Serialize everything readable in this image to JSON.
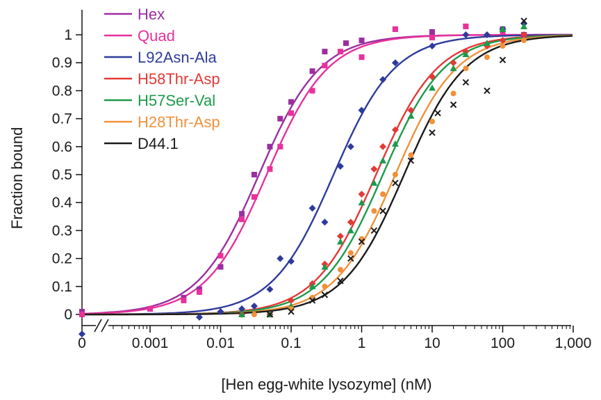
{
  "chart_data": {
    "type": "scatter",
    "title": "",
    "xlabel": "[Hen egg-white lysozyme] (nM)",
    "ylabel": "Fraction bound",
    "x_scale": "log",
    "x_axis_break": true,
    "xlim": [
      0.0001,
      1000
    ],
    "ylim": [
      -0.1,
      1.1
    ],
    "x_tick_labels": [
      "0",
      "0.001",
      "0.01",
      "0.1",
      "1",
      "10",
      "100",
      "1,000"
    ],
    "y_tick_labels": [
      "0",
      "0.1",
      "0.2",
      "0.3",
      "0.4",
      "0.5",
      "0.6",
      "0.7",
      "0.8",
      "0.9",
      "1"
    ],
    "y_ticks": [
      0,
      0.1,
      0.2,
      0.3,
      0.4,
      0.5,
      0.6,
      0.7,
      0.8,
      0.9,
      1
    ],
    "legend_position": "top-left",
    "series": [
      {
        "name": "Hex",
        "color": "#9b2fa0",
        "marker": "square",
        "fit_Kd": 0.035,
        "points": [
          [
            0,
            0.01
          ],
          [
            0.001,
            0.02
          ],
          [
            0.003,
            0.06
          ],
          [
            0.005,
            0.09
          ],
          [
            0.01,
            0.17
          ],
          [
            0.02,
            0.36
          ],
          [
            0.03,
            0.5
          ],
          [
            0.05,
            0.6
          ],
          [
            0.07,
            0.7
          ],
          [
            0.1,
            0.76
          ],
          [
            0.2,
            0.87
          ],
          [
            0.3,
            0.94
          ],
          [
            0.6,
            0.97
          ],
          [
            1,
            0.98
          ],
          [
            3,
            1.02
          ],
          [
            10,
            1.01
          ],
          [
            30,
            1.03
          ],
          [
            100,
            1.02
          ],
          [
            200,
            1.0
          ]
        ]
      },
      {
        "name": "Quad",
        "color": "#e8319b",
        "marker": "square",
        "fit_Kd": 0.045,
        "points": [
          [
            0,
            0.0
          ],
          [
            0.001,
            0.02
          ],
          [
            0.003,
            0.05
          ],
          [
            0.005,
            0.08
          ],
          [
            0.01,
            0.21
          ],
          [
            0.02,
            0.34
          ],
          [
            0.03,
            0.42
          ],
          [
            0.05,
            0.52
          ],
          [
            0.07,
            0.6
          ],
          [
            0.1,
            0.72
          ],
          [
            0.2,
            0.8
          ],
          [
            0.3,
            0.89
          ],
          [
            0.5,
            0.94
          ],
          [
            1,
            0.92
          ],
          [
            3,
            1.02
          ],
          [
            10,
            0.99
          ],
          [
            30,
            1.03
          ],
          [
            100,
            1.01
          ]
        ]
      },
      {
        "name": "L92Asn-Ala",
        "color": "#2e3b9c",
        "marker": "diamond",
        "fit_Kd": 0.4,
        "points": [
          [
            0,
            -0.07
          ],
          [
            0.005,
            -0.01
          ],
          [
            0.01,
            0.01
          ],
          [
            0.02,
            0.02
          ],
          [
            0.03,
            0.03
          ],
          [
            0.05,
            0.09
          ],
          [
            0.07,
            0.2
          ],
          [
            0.1,
            0.19
          ],
          [
            0.2,
            0.38
          ],
          [
            0.3,
            0.33
          ],
          [
            0.5,
            0.53
          ],
          [
            0.7,
            0.6
          ],
          [
            1,
            0.73
          ],
          [
            2,
            0.84
          ],
          [
            3,
            0.9
          ],
          [
            10,
            0.96
          ],
          [
            30,
            1.0
          ],
          [
            60,
            1.0
          ],
          [
            100,
            1.02
          ],
          [
            200,
            1.04
          ]
        ]
      },
      {
        "name": "H58Thr-Asp",
        "color": "#e23a36",
        "marker": "diamond",
        "fit_Kd": 1.6,
        "points": [
          [
            0.02,
            0.0
          ],
          [
            0.05,
            0.0
          ],
          [
            0.1,
            0.05
          ],
          [
            0.2,
            0.11
          ],
          [
            0.3,
            0.18
          ],
          [
            0.5,
            0.28
          ],
          [
            0.7,
            0.33
          ],
          [
            1,
            0.43
          ],
          [
            1.5,
            0.52
          ],
          [
            2,
            0.6
          ],
          [
            3,
            0.66
          ],
          [
            5,
            0.73
          ],
          [
            10,
            0.85
          ],
          [
            20,
            0.9
          ],
          [
            30,
            0.94
          ],
          [
            60,
            0.96
          ],
          [
            100,
            0.98
          ],
          [
            200,
            1.0
          ]
        ]
      },
      {
        "name": "H57Ser-Val",
        "color": "#1d9a4b",
        "marker": "triangle",
        "fit_Kd": 2.0,
        "points": [
          [
            0.02,
            0.0
          ],
          [
            0.05,
            0.0
          ],
          [
            0.1,
            0.03
          ],
          [
            0.2,
            0.1
          ],
          [
            0.3,
            0.17
          ],
          [
            0.5,
            0.26
          ],
          [
            0.7,
            0.3
          ],
          [
            1,
            0.4
          ],
          [
            1.5,
            0.47
          ],
          [
            2,
            0.55
          ],
          [
            3,
            0.61
          ],
          [
            5,
            0.71
          ],
          [
            10,
            0.81
          ],
          [
            20,
            0.88
          ],
          [
            30,
            0.93
          ],
          [
            60,
            0.97
          ],
          [
            100,
            1.02
          ],
          [
            200,
            1.03
          ]
        ]
      },
      {
        "name": "H28Thr-Asp",
        "color": "#f0913a",
        "marker": "circle",
        "fit_Kd": 3.0,
        "points": [
          [
            0.03,
            0.0
          ],
          [
            0.1,
            0.02
          ],
          [
            0.2,
            0.06
          ],
          [
            0.3,
            0.1
          ],
          [
            0.5,
            0.16
          ],
          [
            0.7,
            0.22
          ],
          [
            1,
            0.27
          ],
          [
            1.5,
            0.37
          ],
          [
            2,
            0.43
          ],
          [
            3,
            0.5
          ],
          [
            5,
            0.57
          ],
          [
            10,
            0.69
          ],
          [
            20,
            0.79
          ],
          [
            30,
            0.88
          ],
          [
            60,
            0.92
          ],
          [
            100,
            0.96
          ],
          [
            200,
            0.98
          ]
        ]
      },
      {
        "name": "D44.1",
        "color": "#1a1a1a",
        "marker": "cross",
        "fit_Kd": 4.0,
        "points": [
          [
            0.05,
            0.0
          ],
          [
            0.1,
            0.01
          ],
          [
            0.2,
            0.05
          ],
          [
            0.3,
            0.07
          ],
          [
            0.5,
            0.12
          ],
          [
            0.7,
            0.2
          ],
          [
            1,
            0.26
          ],
          [
            1.5,
            0.3
          ],
          [
            2,
            0.37
          ],
          [
            3,
            0.47
          ],
          [
            5,
            0.55
          ],
          [
            10,
            0.65
          ],
          [
            12,
            0.72
          ],
          [
            20,
            0.75
          ],
          [
            30,
            0.83
          ],
          [
            60,
            0.8
          ],
          [
            100,
            0.91
          ],
          [
            200,
            1.05
          ]
        ]
      }
    ]
  }
}
